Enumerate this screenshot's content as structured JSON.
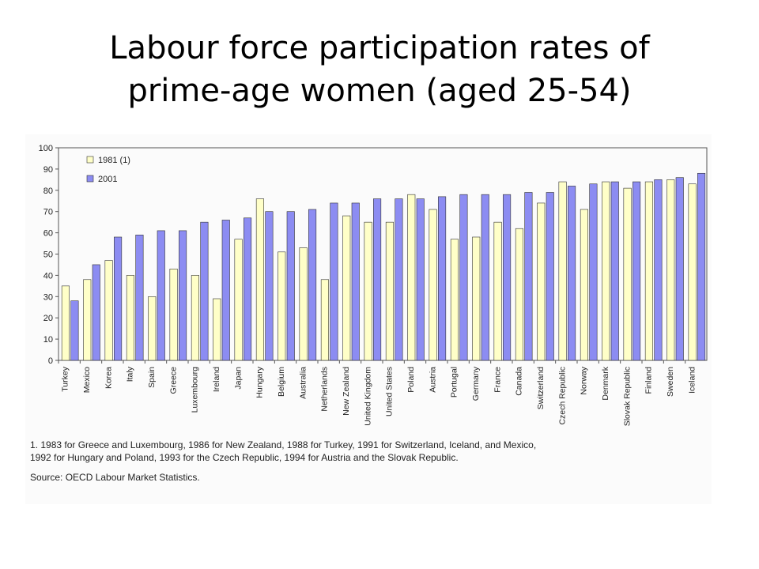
{
  "slide": {
    "title_line1": "Labour force participation rates of",
    "title_line2": "prime-age women (aged 25-54)"
  },
  "notes": {
    "footnote": "1. 1983 for Greece and Luxembourg, 1986 for New Zealand, 1988 for Turkey, 1991 for Switzerland, Iceland, and Mexico, 1992 for Hungary and Poland, 1993 for the Czech Republic, 1994 for Austria and the Slovak Republic.",
    "source": "Source: OECD Labour Market Statistics."
  },
  "colors": {
    "series_1981": "#ffffc8",
    "series_2001": "#8c8cf2",
    "bar_outline": "#333333"
  },
  "chart_data": {
    "type": "bar",
    "title": "",
    "xlabel": "",
    "ylabel": "",
    "ylim": [
      0,
      100
    ],
    "yticks": [
      0,
      10,
      20,
      30,
      40,
      50,
      60,
      70,
      80,
      90,
      100
    ],
    "grid": false,
    "legend": "top-left",
    "categories": [
      "Turkey",
      "Mexico",
      "Korea",
      "Italy",
      "Spain",
      "Greece",
      "Luxembourg",
      "Ireland",
      "Japan",
      "Hungary",
      "Belgium",
      "Australia",
      "Netherlands",
      "New Zealand",
      "United Kingdom",
      "United States",
      "Poland",
      "Austria",
      "Portugal",
      "Germany",
      "France",
      "Canada",
      "Switzerland",
      "Czech Republic",
      "Norway",
      "Denmark",
      "Slovak Republic",
      "Finland",
      "Sweden",
      "Iceland"
    ],
    "series": [
      {
        "name": "1981 (1)",
        "values": [
          35,
          38,
          47,
          40,
          30,
          43,
          40,
          29,
          57,
          76,
          51,
          53,
          38,
          68,
          65,
          65,
          78,
          71,
          57,
          58,
          65,
          62,
          74,
          84,
          71,
          84,
          81,
          84,
          85,
          83
        ]
      },
      {
        "name": "2001",
        "values": [
          28,
          45,
          58,
          59,
          61,
          61,
          65,
          66,
          67,
          70,
          70,
          71,
          74,
          74,
          76,
          76,
          76,
          77,
          78,
          78,
          78,
          79,
          79,
          82,
          83,
          84,
          84,
          85,
          86,
          88
        ]
      }
    ]
  }
}
